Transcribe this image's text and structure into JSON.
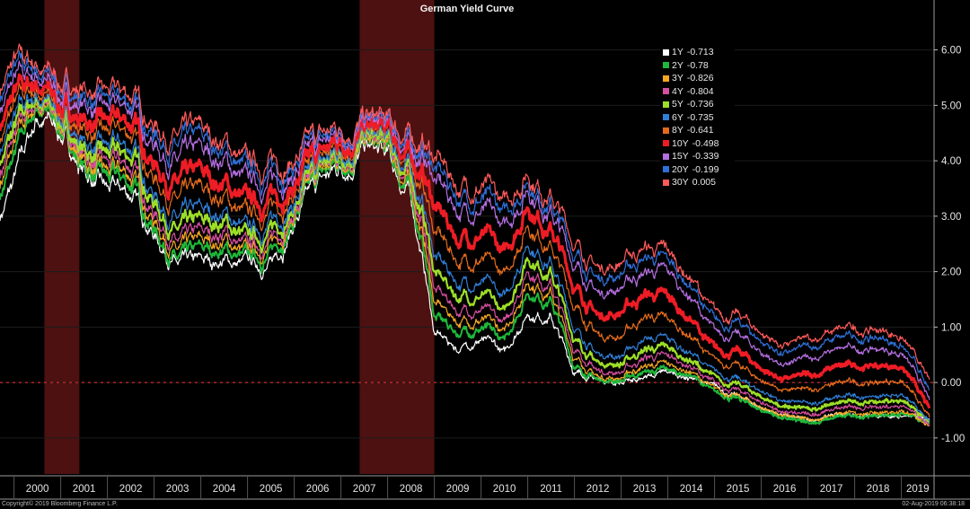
{
  "chart_data": {
    "type": "line",
    "title": "German Yield Curve",
    "xlabel": "",
    "ylabel": "",
    "x_ticks": [
      "2000",
      "2001",
      "2002",
      "2003",
      "2004",
      "2005",
      "2006",
      "2007",
      "2008",
      "2009",
      "2010",
      "2011",
      "2012",
      "2013",
      "2014",
      "2015",
      "2016",
      "2017",
      "2018",
      "2019"
    ],
    "y_ticks": [
      "6.00",
      "5.00",
      "4.00",
      "3.00",
      "2.00",
      "1.00",
      "0.00",
      "-1.00"
    ],
    "xlim": [
      1999.7,
      2019.7
    ],
    "ylim": [
      -1.65,
      6.9
    ],
    "zero_line": true,
    "grid": true,
    "legend_position": "top-right",
    "shaded_periods": [
      [
        2000.65,
        2001.4
      ],
      [
        2007.4,
        2009.0
      ]
    ],
    "anchor_x": [
      1999.7,
      2000.0,
      2000.5,
      2001.0,
      2001.5,
      2002.0,
      2002.5,
      2003.0,
      2003.5,
      2004.0,
      2004.5,
      2005.0,
      2005.5,
      2006.0,
      2006.5,
      2007.0,
      2007.5,
      2008.0,
      2008.5,
      2008.8,
      2009.0,
      2009.5,
      2010.0,
      2010.5,
      2011.0,
      2011.5,
      2012.0,
      2012.5,
      2013.0,
      2013.5,
      2014.0,
      2014.5,
      2015.0,
      2015.5,
      2016.0,
      2016.5,
      2017.0,
      2017.5,
      2018.0,
      2018.5,
      2019.0,
      2019.4,
      2019.6
    ],
    "series": [
      {
        "name": "1Y",
        "color": "#ffffff",
        "last": "-0.713",
        "values": [
          3.0,
          3.6,
          4.8,
          4.5,
          3.8,
          3.4,
          3.4,
          2.7,
          2.1,
          2.1,
          2.2,
          2.1,
          2.1,
          2.9,
          3.5,
          3.9,
          4.2,
          4.0,
          3.3,
          2.0,
          0.9,
          0.6,
          0.8,
          0.5,
          1.3,
          1.2,
          0.2,
          0.05,
          0.0,
          0.1,
          0.15,
          0.1,
          -0.1,
          -0.25,
          -0.45,
          -0.6,
          -0.7,
          -0.6,
          -0.6,
          -0.6,
          -0.6,
          -0.65,
          -0.713
        ]
      },
      {
        "name": "2Y",
        "color": "#1fb83b",
        "last": "-0.78",
        "values": [
          3.4,
          4.0,
          5.0,
          4.6,
          3.9,
          3.6,
          3.6,
          2.8,
          2.2,
          2.3,
          2.4,
          2.2,
          2.3,
          3.0,
          3.6,
          4.0,
          4.3,
          4.1,
          3.4,
          2.3,
          1.2,
          0.9,
          1.0,
          0.7,
          1.7,
          1.5,
          0.3,
          0.05,
          0.05,
          0.2,
          0.2,
          0.15,
          -0.2,
          -0.3,
          -0.5,
          -0.65,
          -0.75,
          -0.65,
          -0.6,
          -0.6,
          -0.55,
          -0.7,
          -0.78
        ]
      },
      {
        "name": "3Y",
        "color": "#f5a623",
        "last": "-0.826",
        "values": [
          3.6,
          4.2,
          5.05,
          4.65,
          4.0,
          3.7,
          3.75,
          2.95,
          2.35,
          2.45,
          2.55,
          2.3,
          2.45,
          3.05,
          3.65,
          4.05,
          4.3,
          4.15,
          3.5,
          2.5,
          1.45,
          1.1,
          1.15,
          0.85,
          1.9,
          1.65,
          0.45,
          0.1,
          0.1,
          0.3,
          0.3,
          0.2,
          -0.15,
          -0.25,
          -0.45,
          -0.6,
          -0.7,
          -0.6,
          -0.55,
          -0.55,
          -0.5,
          -0.7,
          -0.826
        ]
      },
      {
        "name": "4Y",
        "color": "#d64fa0",
        "last": "-0.804",
        "values": [
          3.8,
          4.35,
          5.1,
          4.7,
          4.1,
          3.85,
          3.9,
          3.1,
          2.5,
          2.6,
          2.7,
          2.4,
          2.55,
          3.1,
          3.7,
          4.1,
          4.35,
          4.2,
          3.6,
          2.7,
          1.7,
          1.3,
          1.35,
          1.0,
          2.1,
          1.8,
          0.6,
          0.2,
          0.2,
          0.45,
          0.45,
          0.3,
          -0.05,
          -0.15,
          -0.35,
          -0.55,
          -0.6,
          -0.5,
          -0.45,
          -0.45,
          -0.4,
          -0.65,
          -0.804
        ]
      },
      {
        "name": "5Y",
        "color": "#9dde28",
        "last": "-0.736",
        "values": [
          4.0,
          4.5,
          5.15,
          4.75,
          4.2,
          4.0,
          4.1,
          3.3,
          2.7,
          2.8,
          2.9,
          2.55,
          2.7,
          3.2,
          3.75,
          4.15,
          4.4,
          4.25,
          3.7,
          2.9,
          2.0,
          1.55,
          1.6,
          1.2,
          2.35,
          2.0,
          0.8,
          0.35,
          0.35,
          0.6,
          0.6,
          0.4,
          0.05,
          -0.05,
          -0.25,
          -0.45,
          -0.5,
          -0.4,
          -0.35,
          -0.35,
          -0.3,
          -0.6,
          -0.736
        ]
      },
      {
        "name": "6Y",
        "color": "#2f7fd8",
        "last": "-0.735",
        "values": [
          4.2,
          4.7,
          5.2,
          4.8,
          4.35,
          4.15,
          4.25,
          3.45,
          2.9,
          3.0,
          3.05,
          2.7,
          2.85,
          3.3,
          3.8,
          4.2,
          4.45,
          4.3,
          3.8,
          3.1,
          2.3,
          1.8,
          1.85,
          1.45,
          2.6,
          2.2,
          1.0,
          0.5,
          0.5,
          0.8,
          0.75,
          0.55,
          0.15,
          0.05,
          -0.15,
          -0.35,
          -0.4,
          -0.3,
          -0.25,
          -0.25,
          -0.2,
          -0.55,
          -0.735
        ]
      },
      {
        "name": "8Y",
        "color": "#e56b1c",
        "last": "-0.641",
        "values": [
          4.4,
          4.95,
          5.3,
          4.9,
          4.55,
          4.4,
          4.5,
          3.75,
          3.25,
          3.35,
          3.35,
          2.95,
          3.1,
          3.45,
          3.9,
          4.3,
          4.5,
          4.4,
          3.95,
          3.45,
          2.75,
          2.2,
          2.25,
          1.85,
          2.95,
          2.5,
          1.4,
          0.85,
          0.85,
          1.2,
          1.1,
          0.85,
          0.35,
          0.3,
          0.05,
          -0.15,
          -0.15,
          -0.05,
          0.0,
          0.0,
          0.05,
          -0.4,
          -0.641
        ]
      },
      {
        "name": "10Y",
        "color": "#ee1c25",
        "last": "-0.498",
        "values": [
          4.65,
          5.15,
          5.4,
          5.0,
          4.75,
          4.6,
          4.7,
          4.0,
          3.55,
          3.65,
          3.6,
          3.2,
          3.3,
          3.6,
          4.0,
          4.4,
          4.55,
          4.45,
          4.05,
          3.7,
          3.2,
          2.6,
          2.7,
          2.25,
          3.3,
          2.8,
          1.75,
          1.2,
          1.3,
          1.6,
          1.5,
          1.15,
          0.55,
          0.55,
          0.25,
          0.05,
          0.1,
          0.25,
          0.3,
          0.3,
          0.3,
          -0.2,
          -0.498
        ]
      },
      {
        "name": "15Y",
        "color": "#b46ee0",
        "last": "-0.339",
        "values": [
          4.95,
          5.4,
          5.55,
          5.15,
          5.0,
          4.85,
          4.95,
          4.35,
          3.95,
          4.05,
          4.0,
          3.55,
          3.6,
          3.8,
          4.15,
          4.5,
          4.65,
          4.55,
          4.2,
          4.0,
          3.7,
          3.1,
          3.15,
          2.7,
          3.6,
          3.1,
          2.15,
          1.6,
          1.75,
          2.0,
          1.95,
          1.55,
          0.85,
          0.85,
          0.55,
          0.3,
          0.4,
          0.55,
          0.6,
          0.6,
          0.55,
          0.0,
          -0.339
        ]
      },
      {
        "name": "20Y",
        "color": "#2f6fd8",
        "last": "-0.199",
        "values": [
          5.15,
          5.6,
          5.65,
          5.3,
          5.15,
          5.0,
          5.05,
          4.55,
          4.2,
          4.3,
          4.2,
          3.75,
          3.8,
          3.95,
          4.25,
          4.55,
          4.7,
          4.6,
          4.3,
          4.15,
          3.9,
          3.35,
          3.35,
          2.95,
          3.75,
          3.25,
          2.35,
          1.85,
          2.0,
          2.25,
          2.15,
          1.75,
          1.05,
          1.05,
          0.75,
          0.5,
          0.6,
          0.75,
          0.8,
          0.8,
          0.7,
          0.15,
          -0.199
        ]
      },
      {
        "name": "30Y",
        "color": "#ff5a5a",
        "last": "0.005",
        "values": [
          5.3,
          5.75,
          5.75,
          5.4,
          5.3,
          5.15,
          5.2,
          4.7,
          4.4,
          4.45,
          4.35,
          3.9,
          3.95,
          4.05,
          4.35,
          4.6,
          4.75,
          4.65,
          4.4,
          4.3,
          4.1,
          3.55,
          3.55,
          3.15,
          3.9,
          3.4,
          2.55,
          2.05,
          2.2,
          2.45,
          2.3,
          1.9,
          1.2,
          1.2,
          0.9,
          0.65,
          0.75,
          0.9,
          0.95,
          0.95,
          0.85,
          0.3,
          0.005
        ]
      }
    ]
  },
  "footer": {
    "copyright": "Copyright© 2019 Bloomberg Finance L.P.",
    "timestamp": "02-Aug-2019 06:38:18"
  }
}
